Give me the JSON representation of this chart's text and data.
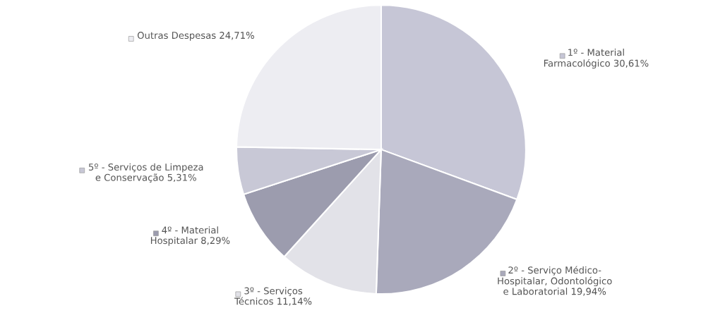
{
  "chart_data": {
    "type": "pie",
    "categories": [
      "1º - Material\nFarmacológico",
      "2º - Serviço Médico-\nHospitalar, Odontológico\ne Laboratorial",
      "3º - Serviços\nTécnicos",
      "4º - Material\nHospitalar",
      "5º - Serviços de Limpeza\ne Conservação",
      "Outras Despesas"
    ],
    "values": [
      30.61,
      19.94,
      11.14,
      8.29,
      5.31,
      24.71
    ],
    "value_labels": [
      "30,61%",
      "19,94%",
      "11,14%",
      "8,29%",
      "5,31%",
      "24,71%"
    ],
    "colors": [
      "#c6c6d6",
      "#a9a9bb",
      "#e2e2e8",
      "#9c9cae",
      "#c8c8d6",
      "#ededf2"
    ],
    "legend": true
  }
}
